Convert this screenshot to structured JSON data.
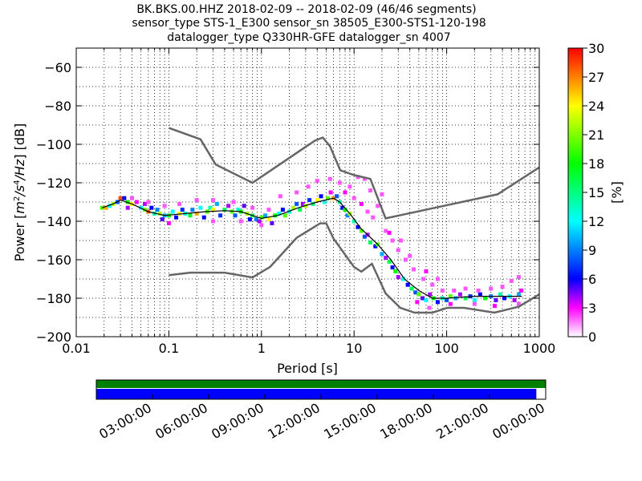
{
  "chart_data": {
    "type": "heatmap",
    "title_lines": [
      "BK.BKS.00.HHZ   2018-02-09 -- 2018-02-09  (46/46 segments)",
      "sensor_type STS-1_E300 sensor_sn 38505_E300-STS1-120-198",
      "datalogger_type Q330HR-GFE datalogger_sn 4007"
    ],
    "xlabel": "Period [s]",
    "ylabel": "Power [m²/s⁴/Hz] [dB]",
    "ylabel_parts": {
      "prefix": "Power [",
      "body": "m",
      "exp1": "2",
      "mid": "/s",
      "exp2": "4",
      "tail": "/Hz",
      "suffix": "] [dB]"
    },
    "x_scale": "log",
    "xlim": [
      0.01,
      1000
    ],
    "ylim": [
      -200,
      -50
    ],
    "x_ticks": [
      0.01,
      0.1,
      1,
      10,
      100,
      1000
    ],
    "x_tick_labels": [
      "0.01",
      "0.1",
      "1",
      "10",
      "100",
      "1000"
    ],
    "y_ticks": [
      -200,
      -180,
      -160,
      -140,
      -120,
      -100,
      -80,
      -60
    ],
    "y_tick_labels": [
      "−200",
      "−180",
      "−160",
      "−140",
      "−120",
      "−100",
      "−80",
      "−60"
    ],
    "grid": "dotted",
    "colorbar": {
      "label": "[%]",
      "range": [
        0,
        30
      ],
      "ticks": [
        0,
        3,
        6,
        9,
        12,
        15,
        18,
        21,
        24,
        27,
        30
      ],
      "tick_labels": [
        "0",
        "3",
        "6",
        "9",
        "12",
        "15",
        "18",
        "21",
        "24",
        "27",
        "30"
      ],
      "colormap": "pqlx"
    },
    "noise_models": [
      {
        "name": "NHNM",
        "color": "#666666",
        "points": [
          [
            0.1,
            -91.5
          ],
          [
            0.22,
            -97.4
          ],
          [
            0.32,
            -110.5
          ],
          [
            0.8,
            -120
          ],
          [
            3.8,
            -98
          ],
          [
            4.6,
            -96.5
          ],
          [
            5.5,
            -101
          ],
          [
            7.1,
            -113.5
          ],
          [
            10,
            -116
          ],
          [
            15,
            -118
          ],
          [
            21.9,
            -138.5
          ],
          [
            354,
            -126
          ],
          [
            1000,
            -112
          ]
        ]
      },
      {
        "name": "NLNM",
        "color": "#666666",
        "points": [
          [
            0.1,
            -168
          ],
          [
            0.17,
            -166.7
          ],
          [
            0.4,
            -166.7
          ],
          [
            0.8,
            -169.2
          ],
          [
            1.24,
            -163.7
          ],
          [
            2.4,
            -148.6
          ],
          [
            4.3,
            -141.1
          ],
          [
            5,
            -141.1
          ],
          [
            6,
            -149
          ],
          [
            10,
            -163.8
          ],
          [
            12,
            -166.2
          ],
          [
            15.6,
            -162.1
          ],
          [
            21.9,
            -177.5
          ],
          [
            31.6,
            -185
          ],
          [
            45,
            -187.5
          ],
          [
            70,
            -187.5
          ],
          [
            101,
            -185
          ],
          [
            154,
            -185
          ],
          [
            328,
            -187.5
          ],
          [
            600,
            -184.4
          ],
          [
            1000,
            -178
          ]
        ]
      }
    ],
    "mode_curve": {
      "color": "#000000",
      "points": [
        [
          0.019,
          -133
        ],
        [
          0.025,
          -131
        ],
        [
          0.03,
          -129
        ],
        [
          0.04,
          -131
        ],
        [
          0.06,
          -135
        ],
        [
          0.09,
          -137
        ],
        [
          0.15,
          -136
        ],
        [
          0.25,
          -135
        ],
        [
          0.4,
          -134.5
        ],
        [
          0.6,
          -135
        ],
        [
          0.8,
          -137
        ],
        [
          1,
          -138.5
        ],
        [
          1.5,
          -137
        ],
        [
          2.5,
          -133
        ],
        [
          4,
          -130
        ],
        [
          6,
          -128
        ],
        [
          7,
          -130
        ],
        [
          9,
          -136
        ],
        [
          12,
          -144
        ],
        [
          18,
          -152
        ],
        [
          25,
          -160
        ],
        [
          35,
          -170
        ],
        [
          50,
          -176
        ],
        [
          70,
          -180
        ],
        [
          100,
          -180
        ],
        [
          200,
          -179
        ],
        [
          650,
          -179
        ]
      ]
    },
    "heatmap_bins": [
      [
        0.019,
        -133,
        20
      ],
      [
        0.021,
        -133,
        26
      ],
      [
        0.023,
        -132,
        12
      ],
      [
        0.025,
        -131,
        22
      ],
      [
        0.028,
        -130,
        8
      ],
      [
        0.03,
        -128,
        28
      ],
      [
        0.033,
        -128,
        6
      ],
      [
        0.036,
        -130,
        18
      ],
      [
        0.036,
        -133,
        4
      ],
      [
        0.04,
        -131,
        24
      ],
      [
        0.045,
        -130,
        3
      ],
      [
        0.05,
        -133,
        12
      ],
      [
        0.055,
        -134,
        20
      ],
      [
        0.055,
        -131,
        4
      ],
      [
        0.06,
        -135,
        28
      ],
      [
        0.065,
        -133,
        6
      ],
      [
        0.07,
        -136,
        14
      ],
      [
        0.075,
        -134,
        9
      ],
      [
        0.08,
        -136,
        22
      ],
      [
        0.085,
        -139,
        5
      ],
      [
        0.09,
        -137,
        10
      ],
      [
        0.1,
        -137,
        18
      ],
      [
        0.11,
        -135,
        12
      ],
      [
        0.12,
        -138,
        6
      ],
      [
        0.13,
        -136,
        24
      ],
      [
        0.14,
        -134,
        7
      ],
      [
        0.15,
        -136,
        13
      ],
      [
        0.17,
        -137,
        17
      ],
      [
        0.18,
        -134,
        9
      ],
      [
        0.2,
        -136,
        26
      ],
      [
        0.22,
        -133,
        12
      ],
      [
        0.24,
        -138,
        6
      ],
      [
        0.26,
        -135,
        20
      ],
      [
        0.28,
        -133,
        14
      ],
      [
        0.3,
        -134,
        24
      ],
      [
        0.33,
        -131,
        10
      ],
      [
        0.36,
        -137,
        7
      ],
      [
        0.4,
        -134,
        16
      ],
      [
        0.44,
        -132,
        4
      ],
      [
        0.48,
        -135,
        20
      ],
      [
        0.52,
        -137,
        8
      ],
      [
        0.56,
        -134,
        13
      ],
      [
        0.6,
        -135,
        18
      ],
      [
        0.65,
        -132,
        5
      ],
      [
        0.7,
        -136,
        22
      ],
      [
        0.75,
        -139,
        6
      ],
      [
        0.8,
        -137,
        16
      ],
      [
        0.88,
        -139,
        9
      ],
      [
        0.95,
        -140,
        4
      ],
      [
        1,
        -138,
        20
      ],
      [
        1.1,
        -137,
        10
      ],
      [
        1.2,
        -139,
        24
      ],
      [
        1.3,
        -141,
        5
      ],
      [
        1.4,
        -137,
        18
      ],
      [
        1.55,
        -136,
        12
      ],
      [
        1.7,
        -134,
        6
      ],
      [
        1.8,
        -137,
        20
      ],
      [
        2,
        -135,
        13
      ],
      [
        2.2,
        -133,
        22
      ],
      [
        2.4,
        -131,
        8
      ],
      [
        2.6,
        -134,
        16
      ],
      [
        2.8,
        -131,
        4
      ],
      [
        3,
        -132,
        22
      ],
      [
        3.3,
        -129,
        7
      ],
      [
        3.6,
        -131,
        15
      ],
      [
        4,
        -129,
        24
      ],
      [
        4.4,
        -127,
        6
      ],
      [
        4.8,
        -130,
        12
      ],
      [
        5.2,
        -128,
        20
      ],
      [
        5.6,
        -125,
        3
      ],
      [
        6,
        -128,
        26
      ],
      [
        6.5,
        -127,
        8
      ],
      [
        7,
        -130,
        14
      ],
      [
        7.5,
        -133,
        6
      ],
      [
        8,
        -134,
        18
      ],
      [
        8.5,
        -137,
        9
      ],
      [
        9,
        -136,
        22
      ],
      [
        10,
        -140,
        14
      ],
      [
        11,
        -143,
        6
      ],
      [
        12,
        -145,
        20
      ],
      [
        13,
        -148,
        8
      ],
      [
        14,
        -147,
        4
      ],
      [
        15,
        -151,
        16
      ],
      [
        17,
        -153,
        6
      ],
      [
        18,
        -152,
        20
      ],
      [
        20,
        -157,
        10
      ],
      [
        22,
        -159,
        4
      ],
      [
        24,
        -161,
        16
      ],
      [
        26,
        -164,
        6
      ],
      [
        28,
        -166,
        18
      ],
      [
        30,
        -169,
        4
      ],
      [
        34,
        -170,
        12
      ],
      [
        38,
        -173,
        6
      ],
      [
        42,
        -175,
        16
      ],
      [
        46,
        -177,
        8
      ],
      [
        50,
        -178,
        20
      ],
      [
        55,
        -180,
        5
      ],
      [
        60,
        -181,
        12
      ],
      [
        66,
        -178,
        4
      ],
      [
        72,
        -180,
        18
      ],
      [
        80,
        -182,
        6
      ],
      [
        90,
        -180,
        14
      ],
      [
        100,
        -181,
        8
      ],
      [
        110,
        -179,
        20
      ],
      [
        125,
        -180,
        10
      ],
      [
        140,
        -178,
        4
      ],
      [
        160,
        -180,
        16
      ],
      [
        180,
        -179,
        7
      ],
      [
        200,
        -181,
        12
      ],
      [
        230,
        -178,
        6
      ],
      [
        260,
        -180,
        18
      ],
      [
        300,
        -179,
        9
      ],
      [
        340,
        -181,
        5
      ],
      [
        380,
        -178,
        14
      ],
      [
        420,
        -180,
        6
      ],
      [
        480,
        -179,
        12
      ],
      [
        540,
        -181,
        4
      ],
      [
        600,
        -178,
        10
      ],
      [
        640,
        -176,
        3
      ],
      [
        1.6,
        -127,
        2
      ],
      [
        2.4,
        -125,
        2
      ],
      [
        3.2,
        -122,
        2
      ],
      [
        4,
        -119,
        2
      ],
      [
        5.5,
        -118,
        2
      ],
      [
        7,
        -120,
        2
      ],
      [
        9,
        -122,
        2
      ],
      [
        11,
        -117,
        2
      ],
      [
        13,
        -118,
        2
      ],
      [
        15,
        -124,
        2
      ],
      [
        18,
        -132,
        2
      ],
      [
        20,
        -126,
        2
      ],
      [
        16,
        -138,
        2
      ],
      [
        22,
        -145,
        2
      ],
      [
        26,
        -150,
        2
      ],
      [
        30,
        -155,
        2
      ],
      [
        36,
        -160,
        2
      ],
      [
        44,
        -165,
        2
      ],
      [
        56,
        -170,
        2
      ],
      [
        70,
        -173,
        2
      ],
      [
        90,
        -176,
        2
      ],
      [
        120,
        -176,
        2
      ],
      [
        160,
        -175,
        2
      ],
      [
        220,
        -176,
        2
      ],
      [
        300,
        -175,
        2
      ],
      [
        400,
        -174,
        2
      ],
      [
        600,
        -169,
        2
      ],
      [
        500,
        -171,
        2
      ],
      [
        8,
        -125,
        3
      ],
      [
        10,
        -128,
        2
      ],
      [
        12,
        -131,
        3
      ],
      [
        14,
        -135,
        2
      ],
      [
        24,
        -146,
        3
      ],
      [
        32,
        -150,
        2
      ],
      [
        40,
        -158,
        2
      ],
      [
        60,
        -166,
        3
      ],
      [
        80,
        -170,
        2
      ],
      [
        48,
        -182,
        3
      ],
      [
        65,
        -185,
        2
      ],
      [
        110,
        -183,
        3
      ],
      [
        200,
        -183,
        2
      ],
      [
        330,
        -184,
        3
      ],
      [
        600,
        -183,
        2
      ],
      [
        0.04,
        -128,
        2
      ],
      [
        0.06,
        -130,
        2
      ],
      [
        0.09,
        -132,
        2
      ],
      [
        0.13,
        -131,
        2
      ],
      [
        0.2,
        -129,
        2
      ],
      [
        0.3,
        -129,
        2
      ],
      [
        0.5,
        -130,
        2
      ],
      [
        0.8,
        -133,
        2
      ],
      [
        1.2,
        -134,
        2
      ],
      [
        0.1,
        -141,
        3
      ],
      [
        0.3,
        -140,
        2
      ],
      [
        0.6,
        -140,
        2
      ],
      [
        1,
        -142,
        2
      ]
    ],
    "time_axis": {
      "tick_labels": [
        "03:00:00",
        "06:00:00",
        "09:00:00",
        "12:00:00",
        "15:00:00",
        "18:00:00",
        "21:00:00",
        "00:00:00"
      ],
      "tick_hours": [
        3,
        6,
        9,
        12,
        15,
        18,
        21,
        24
      ],
      "range_hours": [
        0,
        24
      ],
      "coverage_bars": [
        {
          "name": "data-availability",
          "color": "#008000",
          "start_hour": 0,
          "end_hour": 24
        },
        {
          "name": "psd-coverage",
          "color": "#0000ff",
          "start_hour": 0,
          "end_hour": 23.5
        }
      ]
    }
  }
}
